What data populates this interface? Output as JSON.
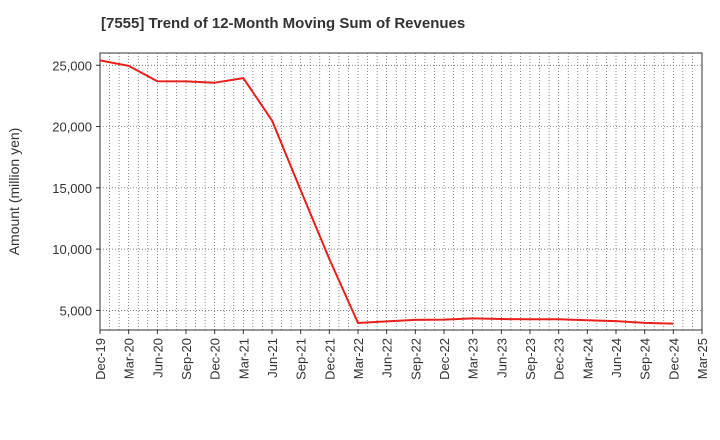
{
  "chart_data": {
    "type": "line",
    "title": "[7555]  Trend of 12-Month Moving Sum of Revenues",
    "xlabel": "",
    "ylabel": "Amount (million yen)",
    "ylim": [
      3400,
      26000
    ],
    "y_ticks": [
      5000,
      10000,
      15000,
      20000,
      25000
    ],
    "y_tick_labels": [
      "5,000",
      "10,000",
      "15,000",
      "20,000",
      "25,000"
    ],
    "categories": [
      "Dec-19",
      "Mar-20",
      "Jun-20",
      "Sep-20",
      "Dec-20",
      "Mar-21",
      "Jun-21",
      "Sep-21",
      "Dec-21",
      "Mar-22",
      "Jun-22",
      "Sep-22",
      "Dec-22",
      "Mar-23",
      "Jun-23",
      "Sep-23",
      "Dec-23",
      "Mar-24",
      "Jun-24",
      "Sep-24",
      "Dec-24",
      "Mar-25"
    ],
    "grid": true,
    "series": [
      {
        "color": "#e8201c",
        "values": [
          25400,
          24950,
          23700,
          23680,
          23580,
          23950,
          20500,
          14800,
          9200,
          3970,
          4100,
          4220,
          4250,
          4350,
          4300,
          4270,
          4270,
          4200,
          4130,
          3980,
          3920,
          null
        ]
      }
    ]
  }
}
